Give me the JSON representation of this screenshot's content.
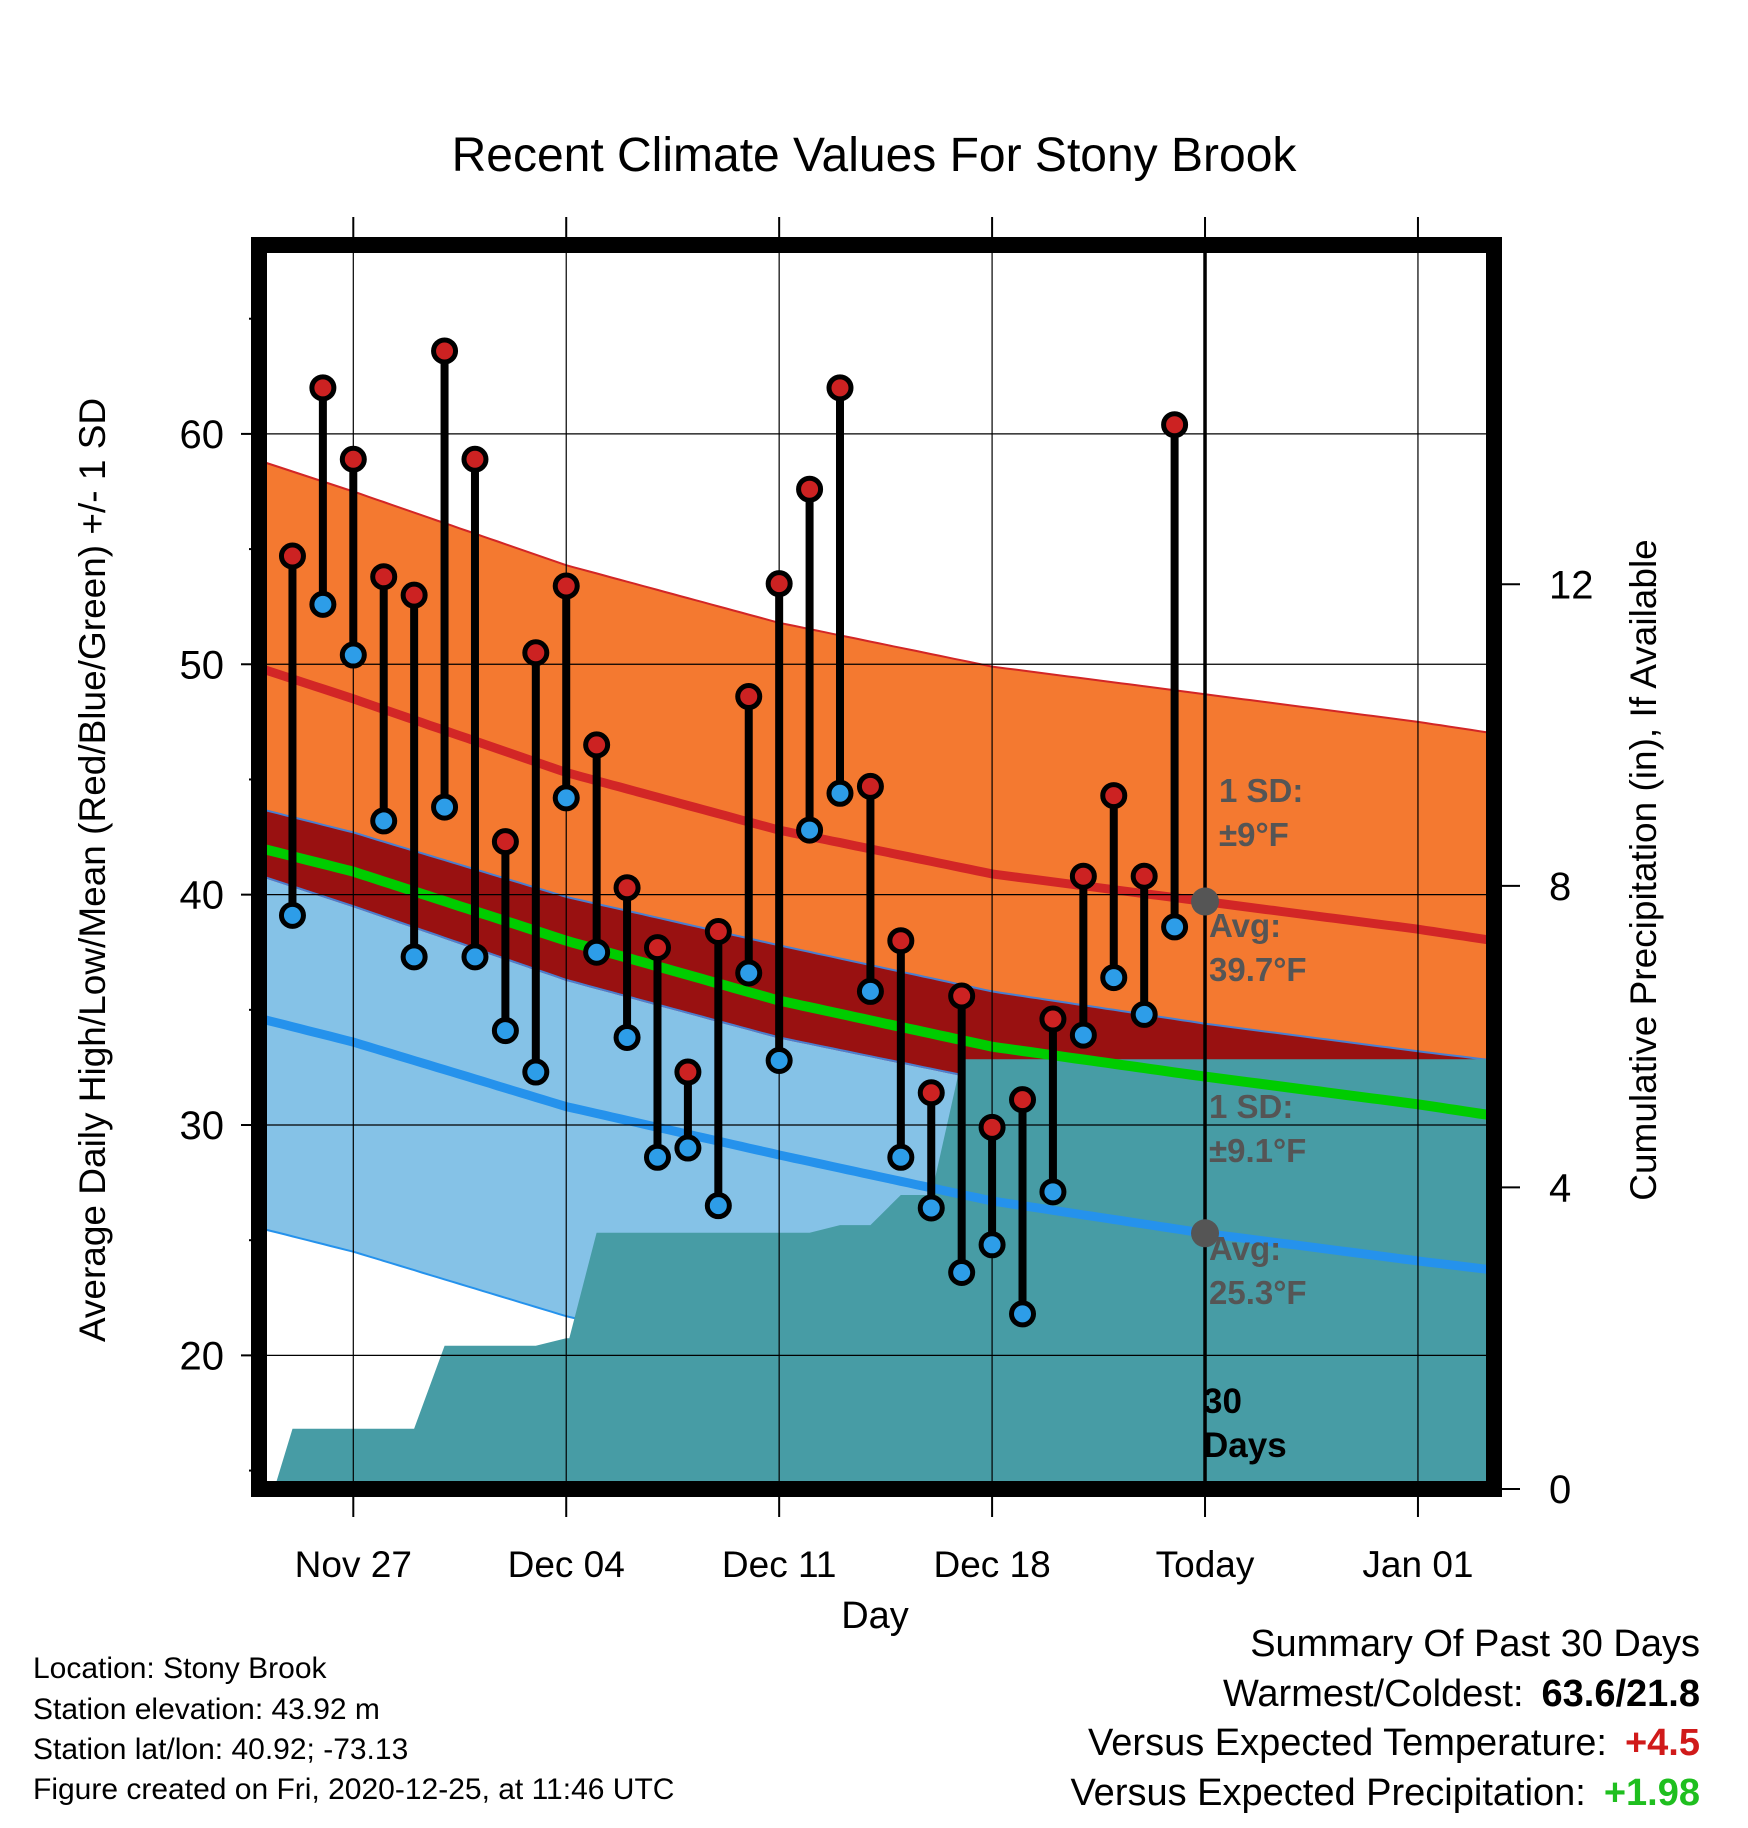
{
  "title": "Recent Climate Values For Stony Brook",
  "chart_data": {
    "type": "line",
    "title": "Recent Climate Values For Stony Brook",
    "xlabel": "Day",
    "ylabel": "Average Daily High/Low/Mean (Red/Blue/Green) +/- 1 SD",
    "ylabel_right": "Cumulative Precipitation (in), If Available",
    "ylim": [
      14.2,
      68.2
    ],
    "ylim_right": [
      0,
      16.5
    ],
    "yticks": [
      20,
      30,
      40,
      50,
      60
    ],
    "yticks_right": [
      0,
      4,
      8,
      12
    ],
    "xlim": [
      -3.1,
      37.5
    ],
    "xticks": [
      {
        "day": 0,
        "label": "Nov 27"
      },
      {
        "day": 7,
        "label": "Dec 04"
      },
      {
        "day": 14,
        "label": "Dec 11"
      },
      {
        "day": 21,
        "label": "Dec 18"
      },
      {
        "day": 28,
        "label": "Today"
      },
      {
        "day": 35,
        "label": "Jan 01"
      }
    ],
    "grid": true,
    "series": [
      {
        "name": "High",
        "color": "#cc2222",
        "values": [
          54.7,
          62.0,
          58.9,
          53.8,
          53.0,
          63.6,
          58.9,
          42.3,
          50.5,
          53.4,
          46.5,
          40.3,
          37.7,
          32.3,
          38.4,
          48.6,
          53.5,
          57.6,
          62.0,
          44.7,
          38.0,
          31.4,
          35.6,
          29.9,
          31.1,
          34.6,
          40.8,
          44.3,
          40.8,
          60.4
        ]
      },
      {
        "name": "Low",
        "color": "#2d9de8",
        "values": [
          39.1,
          52.6,
          50.4,
          43.2,
          37.3,
          43.8,
          37.3,
          34.1,
          32.3,
          44.2,
          37.5,
          33.8,
          28.6,
          29.0,
          26.5,
          36.6,
          32.8,
          42.8,
          44.4,
          35.8,
          28.6,
          26.4,
          23.6,
          24.8,
          21.8,
          27.1,
          33.9,
          36.4,
          34.8,
          38.6
        ]
      }
    ],
    "normals": {
      "day": [
        -3,
        0,
        7,
        14,
        21,
        28,
        35,
        37.5
      ],
      "high_mean": [
        49.8,
        48.5,
        45.3,
        42.8,
        40.9,
        39.7,
        38.5,
        38.0
      ],
      "high_sd": 9,
      "low_mean": [
        34.6,
        33.6,
        30.8,
        28.7,
        26.7,
        25.3,
        24.1,
        23.7
      ],
      "low_sd": 9.1,
      "mean": [
        42.0,
        41.0,
        38.0,
        35.4,
        33.4,
        32.1,
        30.9,
        30.4
      ]
    },
    "precipitation": {
      "day": [
        -2.6,
        -2,
        -1,
        0,
        1,
        2,
        3,
        4,
        5,
        6,
        7,
        7.1,
        8,
        9,
        10,
        11,
        12,
        13,
        14,
        15,
        16,
        17,
        18,
        19,
        20,
        21,
        22,
        23,
        24,
        25,
        26,
        27,
        28,
        29,
        30,
        31,
        32,
        33,
        34,
        35,
        36,
        37.5
      ],
      "values": [
        0,
        0.8,
        0.8,
        0.8,
        0.8,
        0.8,
        1.9,
        1.9,
        1.9,
        1.9,
        2.0,
        2.0,
        3.4,
        3.4,
        3.4,
        3.4,
        3.4,
        3.4,
        3.4,
        3.4,
        3.5,
        3.5,
        3.9,
        3.9,
        5.7,
        5.7,
        5.7,
        5.7,
        5.7,
        5.7,
        5.7,
        5.7,
        5.7,
        5.7,
        5.7,
        5.7,
        5.7,
        5.7,
        5.7,
        5.7,
        5.7,
        5.7
      ],
      "colors": {
        "precip": "#479ca5"
      }
    },
    "annotations": [
      {
        "text_1": "1 SD:",
        "text_2": "±9°F"
      },
      {
        "text_1": "Avg:",
        "text_2": "39.7°F"
      },
      {
        "text_1": "1 SD:",
        "text_2": "±9.1°F"
      },
      {
        "text_1": "Avg:",
        "text_2": "25.3°F"
      },
      {
        "text_1": "30",
        "text_2": "Days"
      }
    ],
    "colors": {
      "high_band": "#f47930",
      "high_line": "#d22626",
      "low_band": "#85c2e7",
      "low_line": "#2592ec",
      "mean_line": "#00cc00",
      "overlap": "#991111",
      "annotation": "#555555"
    }
  },
  "footer": {
    "location": "Location: Stony Brook",
    "elevation": "Station elevation: 43.92 m",
    "latlon": "Station lat/lon: 40.92; -73.13",
    "created": "Figure created on Fri, 2020-12-25, at 11:46 UTC"
  },
  "summary": {
    "heading": "Summary Of Past 30 Days",
    "warm_cold_label": "Warmest/Coldest:",
    "warm_cold_value": "63.6/21.8",
    "temp_label": "Versus Expected Temperature:",
    "temp_value": "+4.5",
    "precip_label": "Versus Expected Precipitation:",
    "precip_value": "+1.98"
  }
}
